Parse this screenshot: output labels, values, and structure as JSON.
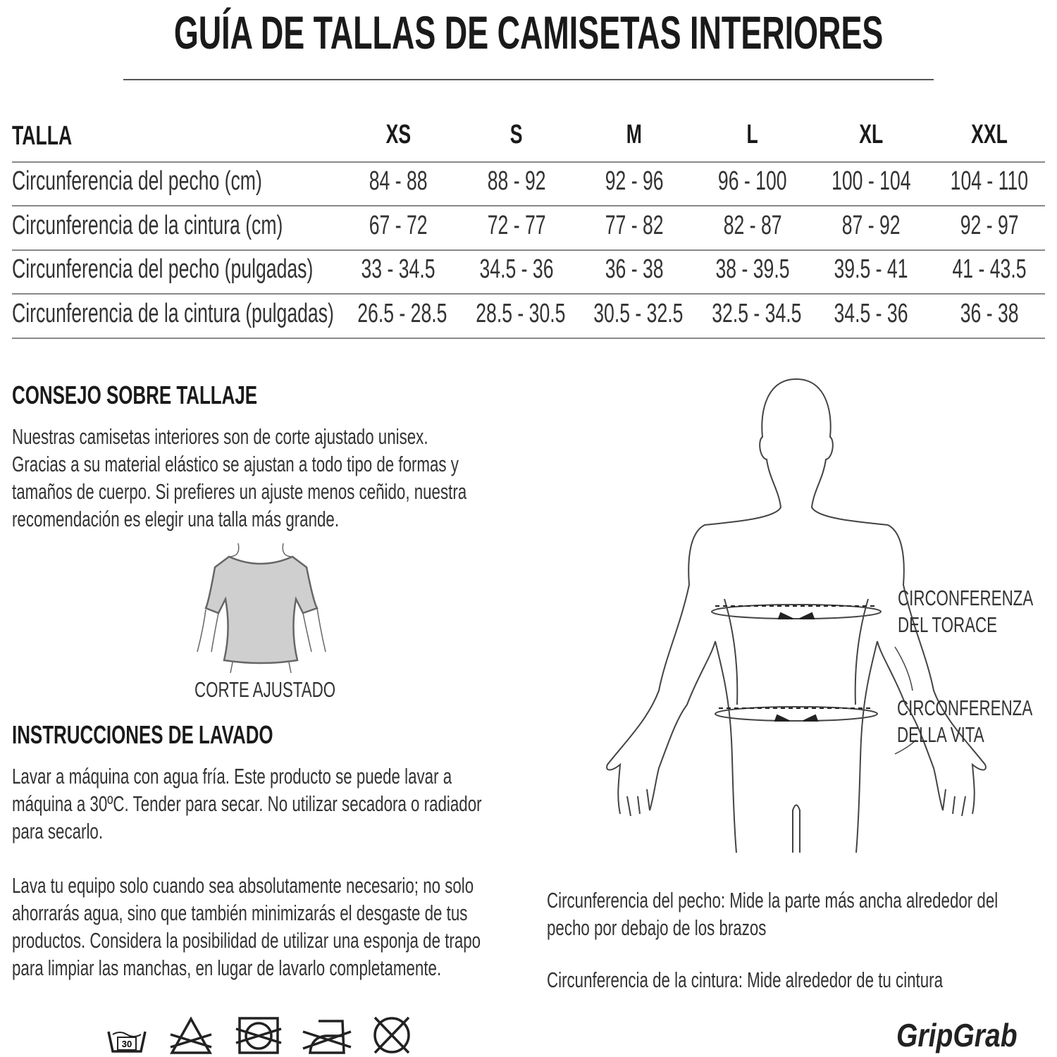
{
  "title": "GUÍA DE TALLAS DE CAMISETAS INTERIORES",
  "table": {
    "header_label": "TALLA",
    "sizes": [
      "XS",
      "S",
      "M",
      "L",
      "XL",
      "XXL"
    ],
    "rows": [
      {
        "label": "Circunferencia del pecho (cm)",
        "values": [
          "84 - 88",
          "88 - 92",
          "92 - 96",
          "96 - 100",
          "100 - 104",
          "104 - 110"
        ]
      },
      {
        "label": "Circunferencia de la cintura (cm)",
        "values": [
          "67 - 72",
          "72 - 77",
          "77 - 82",
          "82 - 87",
          "87 - 92",
          "92 - 97"
        ]
      },
      {
        "label": "Circunferencia del pecho (pulgadas)",
        "values": [
          "33 - 34.5",
          "34.5 - 36",
          "36 - 38",
          "38 - 39.5",
          "39.5 - 41",
          "41 - 43.5"
        ]
      },
      {
        "label": "Circunferencia de la cintura (pulgadas)",
        "values": [
          "26.5 - 28.5",
          "28.5 - 30.5",
          "30.5 - 32.5",
          "32.5 - 34.5",
          "34.5 - 36",
          "36 - 38"
        ]
      }
    ]
  },
  "fit_advice": {
    "heading": "CONSEJO SOBRE TALLAJE",
    "lines": [
      "Nuestras camisetas interiores son de corte ajustado unisex.",
      "Gracias a su material elástico se ajustan a todo tipo de formas y",
      "tamaños de cuerpo. Si prefieres un ajuste menos ceñido, nuestra",
      "recomendación es elegir una talla más grande."
    ],
    "shirt_caption": "CORTE AJUSTADO"
  },
  "washing": {
    "heading": "INSTRUCCIONES DE LAVADO",
    "para1": [
      "Lavar a máquina con agua fría. Este producto se puede lavar a",
      "máquina a 30ºC. Tender para secar. No utilizar secadora o radiador",
      "para secarlo."
    ],
    "para2": [
      "Lava tu equipo solo cuando sea absolutamente necesario; no solo",
      "ahorrarás agua, sino que también minimizarás el desgaste de tus",
      "productos. Considera la posibilidad de utilizar una esponja de trapo",
      "para limpiar las manchas, en lugar de lavarlo completamente."
    ],
    "wash_temp": "30",
    "icons": [
      "wash-30-icon",
      "no-bleach-icon",
      "no-tumble-dry-icon",
      "no-iron-icon",
      "no-dry-clean-icon"
    ]
  },
  "diagram": {
    "chest_label": [
      "CIRCONFERENZA",
      "DEL TORACE"
    ],
    "waist_label": [
      "CIRCONFERENZA",
      "DELLA VITA"
    ],
    "chest_desc": [
      "Circunferencia del pecho: Mide la parte más ancha alrededor del",
      "pecho por debajo de los brazos"
    ],
    "waist_desc": "Circunferencia de la cintura: Mide alrededor de tu cintura"
  },
  "brand": "GripGrab"
}
